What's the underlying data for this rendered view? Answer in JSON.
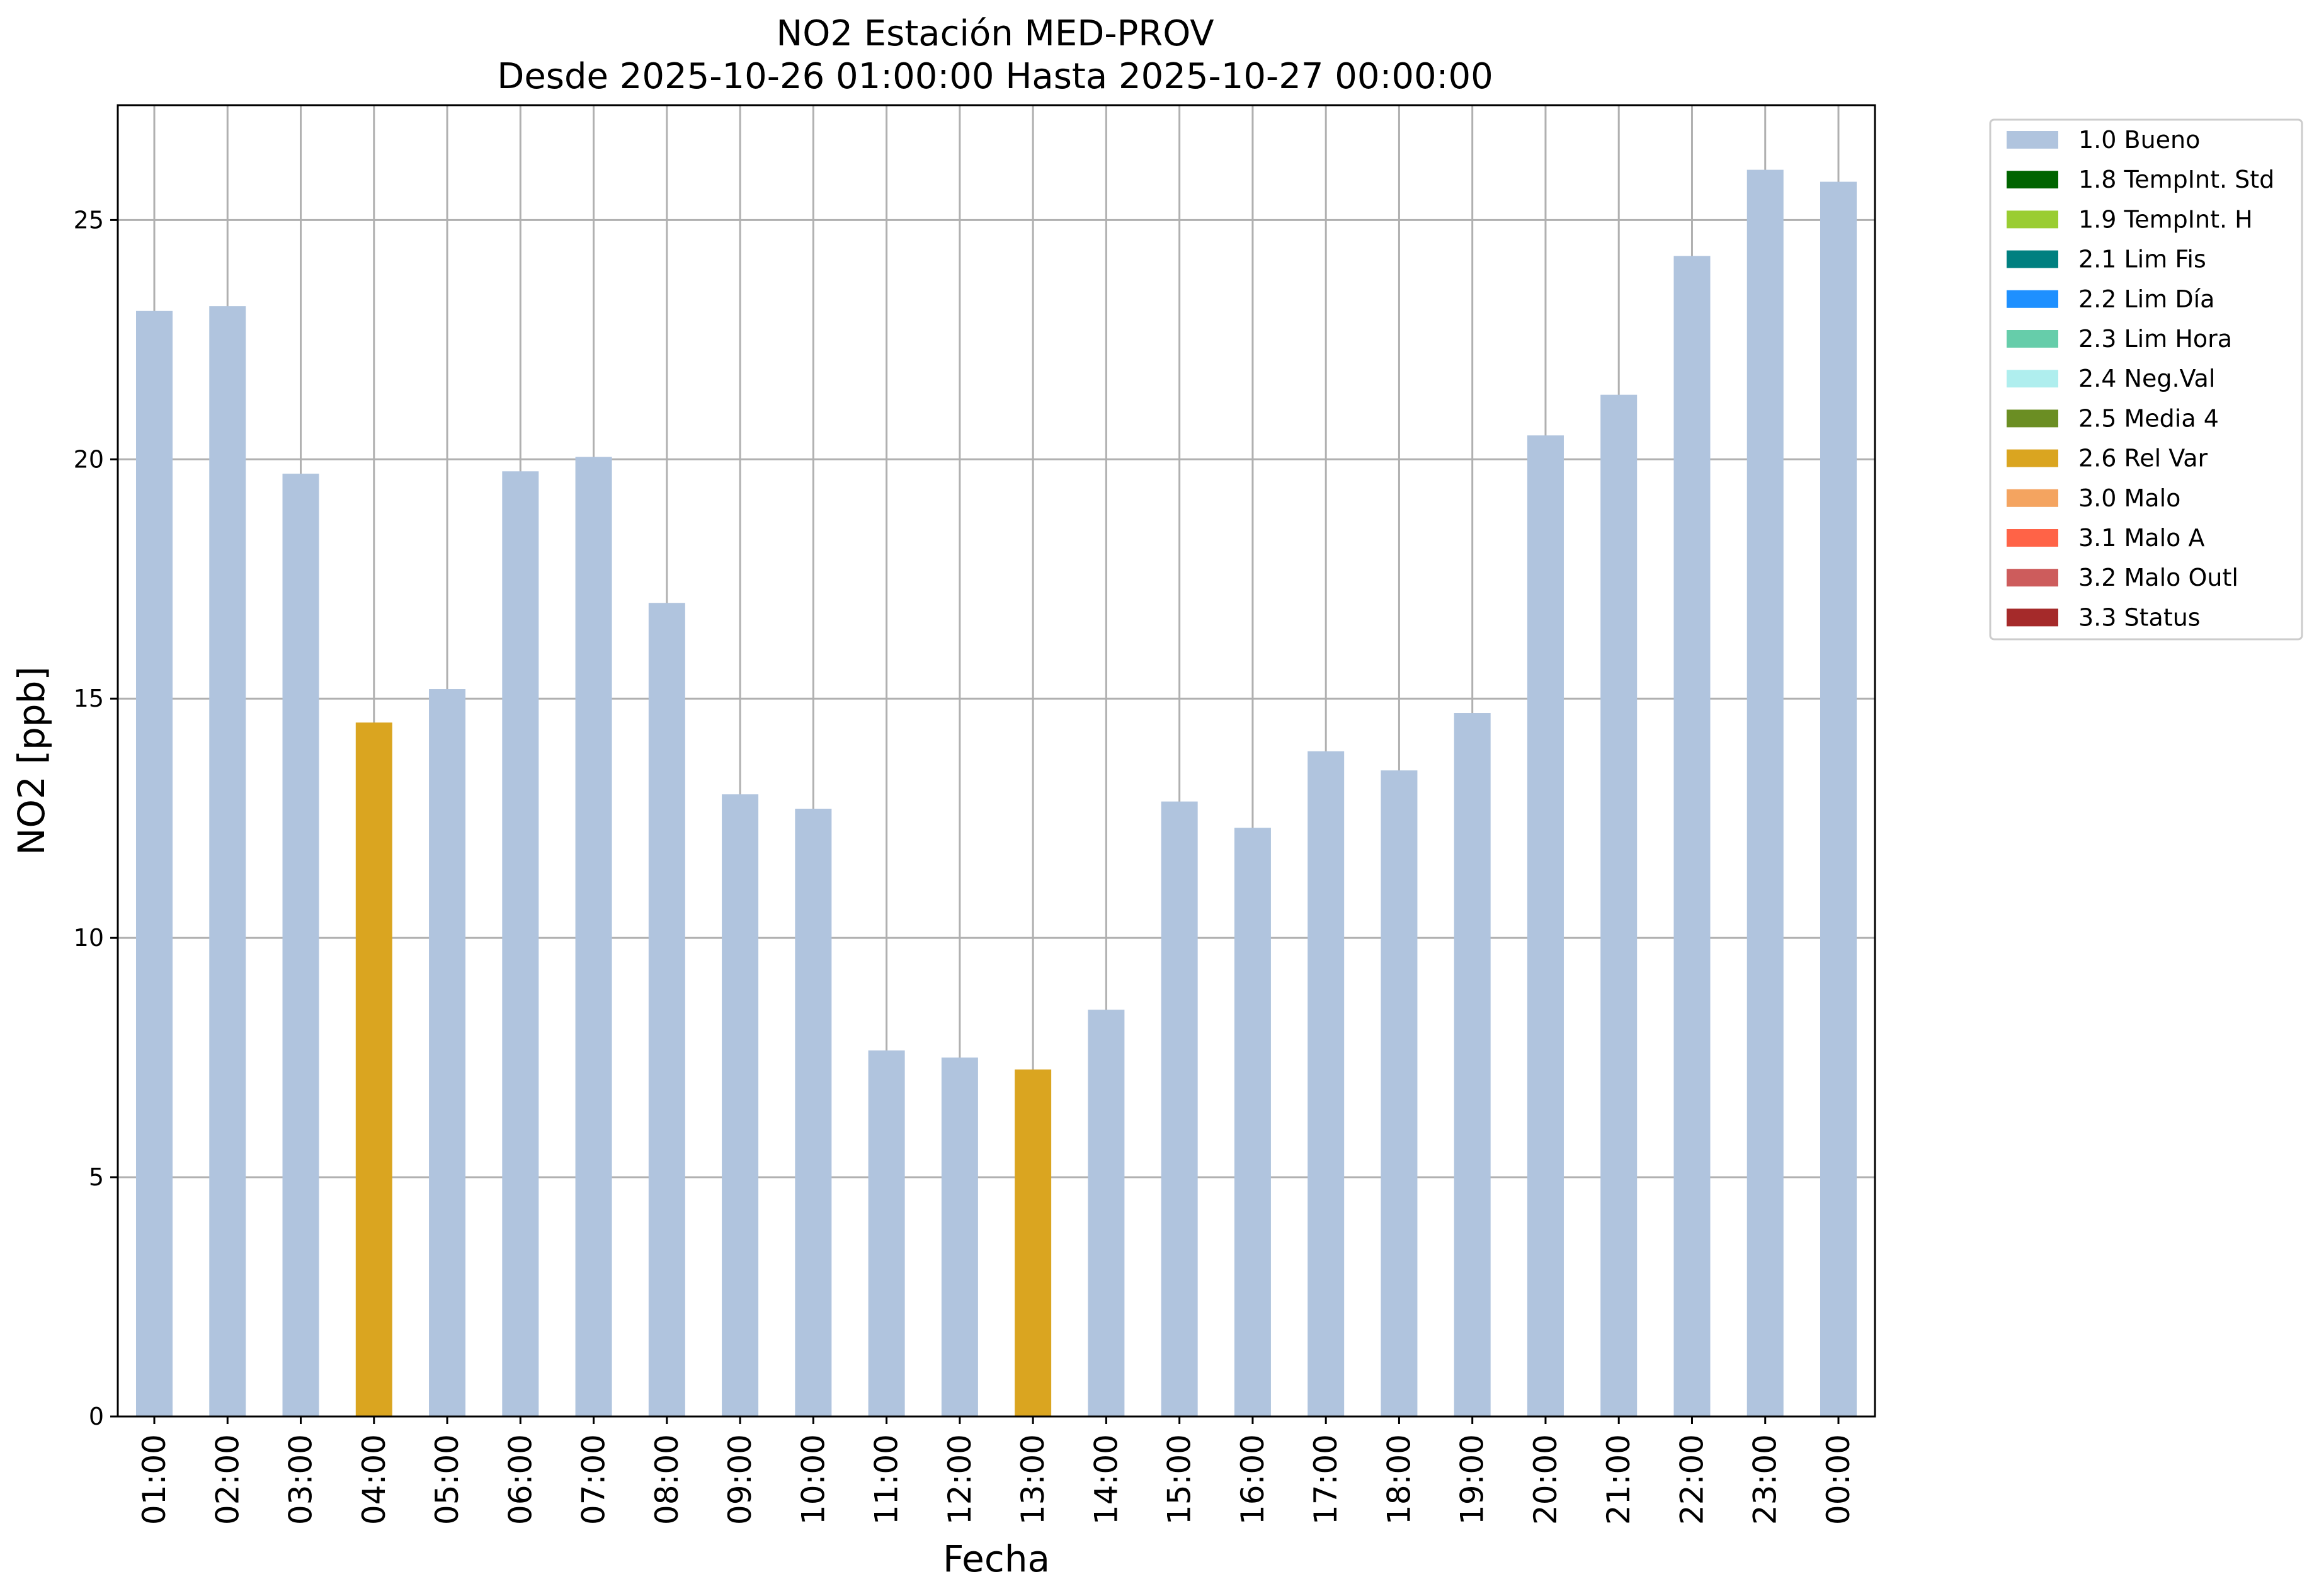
{
  "chart_data": {
    "type": "bar",
    "title_line1": "NO2 Estación MED-PROV",
    "title_line2": "Desde 2025-10-26 01:00:00 Hasta 2025-10-27 00:00:00",
    "xlabel": "Fecha",
    "ylabel": "NO2 [ppb]",
    "ylim": [
      0,
      27.4
    ],
    "yticks": [
      0,
      5,
      10,
      15,
      20,
      25
    ],
    "grid": true,
    "legend_position": "outside-right-top",
    "categories": [
      "01:00",
      "02:00",
      "03:00",
      "04:00",
      "05:00",
      "06:00",
      "07:00",
      "08:00",
      "09:00",
      "10:00",
      "11:00",
      "12:00",
      "13:00",
      "14:00",
      "15:00",
      "16:00",
      "17:00",
      "18:00",
      "19:00",
      "20:00",
      "21:00",
      "22:00",
      "23:00",
      "00:00"
    ],
    "values": [
      23.1,
      23.2,
      19.7,
      14.5,
      15.2,
      19.75,
      20.05,
      17.0,
      13.0,
      12.7,
      7.65,
      7.5,
      7.25,
      8.5,
      12.85,
      12.3,
      13.9,
      13.5,
      14.7,
      20.5,
      21.35,
      24.25,
      26.05,
      25.8
    ],
    "flags": [
      "1.0 Bueno",
      "1.0 Bueno",
      "1.0 Bueno",
      "2.6 Rel Var",
      "1.0 Bueno",
      "1.0 Bueno",
      "1.0 Bueno",
      "1.0 Bueno",
      "1.0 Bueno",
      "1.0 Bueno",
      "1.0 Bueno",
      "1.0 Bueno",
      "2.6 Rel Var",
      "1.0 Bueno",
      "1.0 Bueno",
      "1.0 Bueno",
      "1.0 Bueno",
      "1.0 Bueno",
      "1.0 Bueno",
      "1.0 Bueno",
      "1.0 Bueno",
      "1.0 Bueno",
      "1.0 Bueno",
      "1.0 Bueno"
    ],
    "legend": [
      {
        "label": "1.0 Bueno",
        "color": "#b0c4de"
      },
      {
        "label": "1.8 TempInt. Std",
        "color": "#006400"
      },
      {
        "label": "1.9 TempInt. H",
        "color": "#9acd32"
      },
      {
        "label": "2.1 Lim Fis",
        "color": "#008080"
      },
      {
        "label": "2.2 Lim Día",
        "color": "#1e90ff"
      },
      {
        "label": "2.3 Lim Hora",
        "color": "#66cdaa"
      },
      {
        "label": "2.4 Neg.Val",
        "color": "#afeeee"
      },
      {
        "label": "2.5 Media 4",
        "color": "#6b8e23"
      },
      {
        "label": "2.6 Rel Var",
        "color": "#daa520"
      },
      {
        "label": "3.0 Malo",
        "color": "#f4a460"
      },
      {
        "label": "3.1 Malo A",
        "color": "#ff6347"
      },
      {
        "label": "3.2 Malo Outl",
        "color": "#cd5c5c"
      },
      {
        "label": "3.3 Status",
        "color": "#a52a2a"
      }
    ]
  }
}
